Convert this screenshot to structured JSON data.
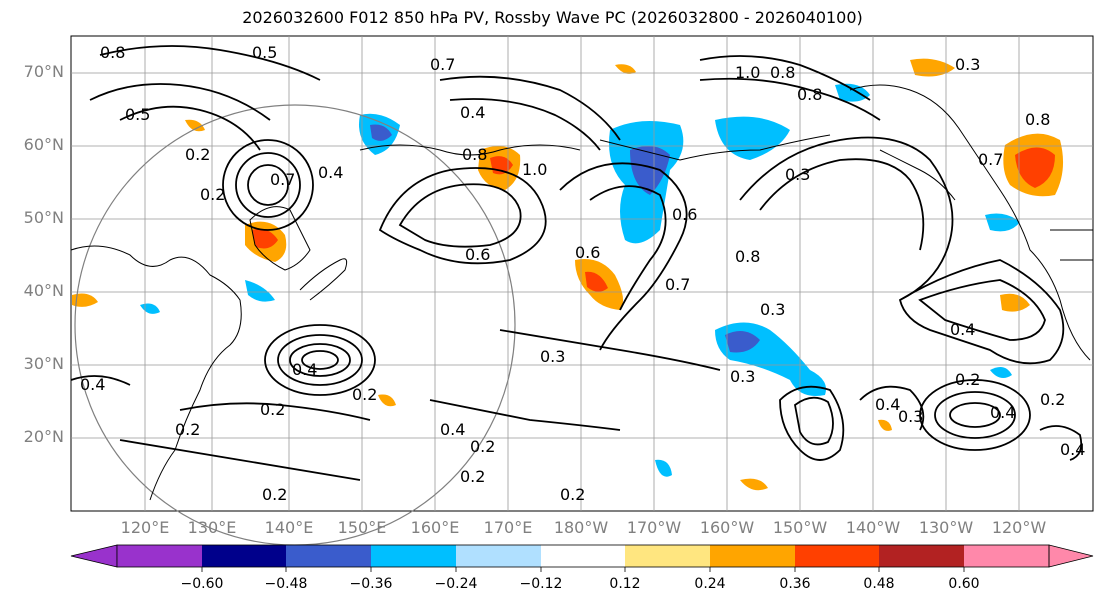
{
  "title": "2026032600 F012 850 hPa PV, Rossby Wave PC (2026032800 - 2026040100)",
  "lat_labels": [
    "70°N",
    "60°N",
    "50°N",
    "40°N",
    "30°N",
    "20°N"
  ],
  "lon_labels": [
    "120°E",
    "130°E",
    "140°E",
    "150°E",
    "160°E",
    "170°E",
    "180°W",
    "170°W",
    "160°W",
    "150°W",
    "140°W",
    "130°W",
    "120°W"
  ],
  "colorbar": {
    "ticks": [
      "−0.60",
      "−0.48",
      "−0.36",
      "−0.24",
      "−0.12",
      "0.12",
      "0.24",
      "0.36",
      "0.48",
      "0.60"
    ],
    "colors": [
      "#9932cc",
      "#00008b",
      "#3a5ccc",
      "#00bfff",
      "#b0e0ff",
      "#ffffff",
      "#ffe680",
      "#ffa500",
      "#ff4000",
      "#b22222",
      "#ff88aa"
    ]
  },
  "contour_labels": [
    "0.8",
    "0.5",
    "0.7",
    "0.5",
    "0.4",
    "0.2",
    "0.2",
    "0.7",
    "0.4",
    "0.8",
    "1.0",
    "0.6",
    "0.6",
    "0.6",
    "0.7",
    "0.8",
    "0.3",
    "1.0",
    "0.8",
    "0.8",
    "0.7",
    "0.8",
    "0.3",
    "0.3",
    "0.3",
    "0.4",
    "0.2",
    "0.2",
    "0.4",
    "0.2",
    "0.2",
    "0.2",
    "0.3",
    "0.2",
    "0.2",
    "0.4",
    "0.4",
    "0.3",
    "0.2",
    "0.4",
    "0.4",
    "0.4",
    "0.2"
  ]
}
